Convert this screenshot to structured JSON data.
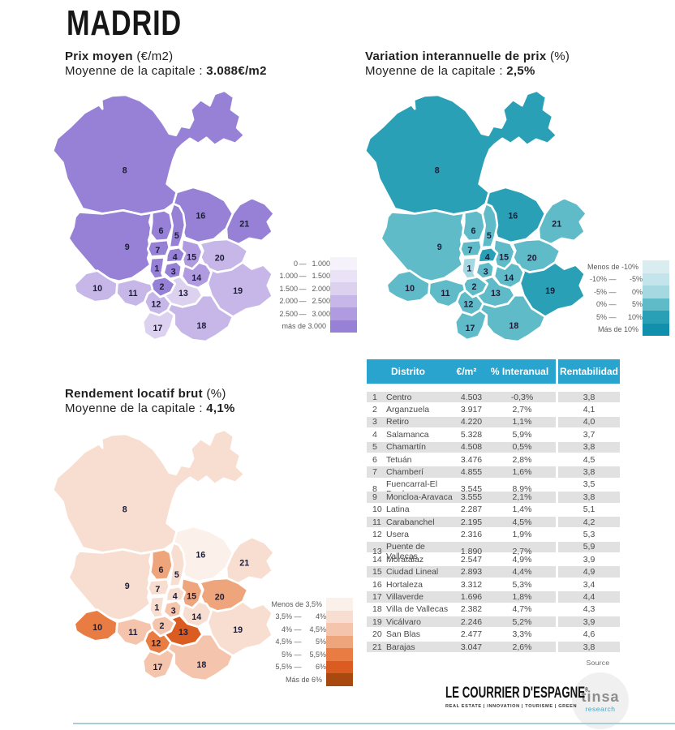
{
  "title": "MADRID",
  "maps": [
    {
      "id": "price",
      "title_bold": "Prix moyen",
      "title_rest": " (€/m2)",
      "subtitle": "Moyenne de la capitale : ",
      "subtitle_value": "3.088€/m2",
      "metric": "price_eur_m2",
      "thresholds": [
        1000,
        1500,
        2000,
        2500,
        3000
      ],
      "colors": [
        "#f5f2fb",
        "#eae3f7",
        "#dcd2f0",
        "#c7b7e8",
        "#b09ae0",
        "#9681d6"
      ],
      "legend_labels": [
        "0 — 1.000",
        "1.000 — 1.500",
        "1.500 — 2.000",
        "2.000 — 2.500",
        "2.500 — 3.000",
        "más de 3.000"
      ]
    },
    {
      "id": "variation",
      "title_bold": "Variation interannuelle de prix",
      "title_rest": " (%)",
      "subtitle": "Moyenne de la capitale : ",
      "subtitle_value": "2,5%",
      "metric": "yoy_pct",
      "thresholds": [
        -10,
        -5,
        0,
        5,
        10
      ],
      "colors": [
        "#d9edf1",
        "#c2e4ea",
        "#a5d8e0",
        "#5fbbc8",
        "#2aa0b6",
        "#1090ad"
      ],
      "legend_labels": [
        "Menos de -10%",
        "-10% — -5%",
        "-5% — 0%",
        "0% — 5%",
        "5% — 10%",
        "Más de 10%"
      ]
    },
    {
      "id": "yield",
      "title_bold": "Rendement locatif brut",
      "title_rest": " (%)",
      "subtitle": "Moyenne de la capitale : ",
      "subtitle_value": "4,1%",
      "metric": "yield_pct",
      "thresholds": [
        3.5,
        4,
        4.5,
        5,
        5.5,
        6
      ],
      "colors": [
        "#fcf0ea",
        "#f8ded0",
        "#f4c5ac",
        "#efa57c",
        "#e87c42",
        "#da5c20",
        "#a8490f"
      ],
      "legend_labels": [
        "Menos de 3,5%",
        "3,5% — 4%",
        "4% — 4,5%",
        "4,5% — 5%",
        "5% — 5,5%",
        "5,5% — 6%",
        "Más de 6%"
      ]
    }
  ],
  "table": {
    "headers": [
      "Distrito",
      "€/m²",
      "% Interanual",
      "Rentabilidad"
    ],
    "header_color": "#29a4ce",
    "stripe_color": "#e1e1e1"
  },
  "chart_data": {
    "type": "choropleth",
    "region": "Madrid districts",
    "metrics": [
      "price_eur_m2",
      "yoy_pct",
      "yield_pct"
    ],
    "districts": [
      {
        "id": 1,
        "name": "Centro",
        "price_eur_m2": 4503,
        "yoy_pct": -0.3,
        "yield_pct": 3.8
      },
      {
        "id": 2,
        "name": "Arganzuela",
        "price_eur_m2": 3917,
        "yoy_pct": 2.7,
        "yield_pct": 4.1
      },
      {
        "id": 3,
        "name": "Retiro",
        "price_eur_m2": 4220,
        "yoy_pct": 1.1,
        "yield_pct": 4.0
      },
      {
        "id": 4,
        "name": "Salamanca",
        "price_eur_m2": 5328,
        "yoy_pct": 5.9,
        "yield_pct": 3.7
      },
      {
        "id": 5,
        "name": "Chamartín",
        "price_eur_m2": 4508,
        "yoy_pct": 0.5,
        "yield_pct": 3.8
      },
      {
        "id": 6,
        "name": "Tetuán",
        "price_eur_m2": 3476,
        "yoy_pct": 2.8,
        "yield_pct": 4.5
      },
      {
        "id": 7,
        "name": "Chamberí",
        "price_eur_m2": 4855,
        "yoy_pct": 1.6,
        "yield_pct": 3.8
      },
      {
        "id": 8,
        "name": "Fuencarral-El Pardo",
        "price_eur_m2": 3545,
        "yoy_pct": 8.9,
        "yield_pct": 3.5
      },
      {
        "id": 9,
        "name": "Moncloa-Aravaca",
        "price_eur_m2": 3555,
        "yoy_pct": 2.1,
        "yield_pct": 3.8
      },
      {
        "id": 10,
        "name": "Latina",
        "price_eur_m2": 2287,
        "yoy_pct": 1.4,
        "yield_pct": 5.1
      },
      {
        "id": 11,
        "name": "Carabanchel",
        "price_eur_m2": 2195,
        "yoy_pct": 4.5,
        "yield_pct": 4.2
      },
      {
        "id": 12,
        "name": "Usera",
        "price_eur_m2": 2316,
        "yoy_pct": 1.9,
        "yield_pct": 5.3
      },
      {
        "id": 13,
        "name": "Puente de Vallecas",
        "price_eur_m2": 1890,
        "yoy_pct": 2.7,
        "yield_pct": 5.9
      },
      {
        "id": 14,
        "name": "Moratalaz",
        "price_eur_m2": 2547,
        "yoy_pct": 4.9,
        "yield_pct": 3.9
      },
      {
        "id": 15,
        "name": "Ciudad Lineal",
        "price_eur_m2": 2893,
        "yoy_pct": 4.4,
        "yield_pct": 4.9
      },
      {
        "id": 16,
        "name": "Hortaleza",
        "price_eur_m2": 3312,
        "yoy_pct": 5.3,
        "yield_pct": 3.4
      },
      {
        "id": 17,
        "name": "Villaverde",
        "price_eur_m2": 1696,
        "yoy_pct": 1.8,
        "yield_pct": 4.4
      },
      {
        "id": 18,
        "name": "Villa de Vallecas",
        "price_eur_m2": 2382,
        "yoy_pct": 4.7,
        "yield_pct": 4.3
      },
      {
        "id": 19,
        "name": "Vicálvaro",
        "price_eur_m2": 2246,
        "yoy_pct": 5.2,
        "yield_pct": 3.9
      },
      {
        "id": 20,
        "name": "San Blas",
        "price_eur_m2": 2477,
        "yoy_pct": 3.3,
        "yield_pct": 4.6
      },
      {
        "id": 21,
        "name": "Barajas",
        "price_eur_m2": 3047,
        "yoy_pct": 2.6,
        "yield_pct": 3.8
      }
    ]
  },
  "footer": {
    "source_label": "Source",
    "courrier_title": "LE COURRIER D'ESPAGNE",
    "courrier_mark": "®",
    "courrier_tagline": "REAL ESTATE | INNOVATION | TOURISME | GREEN",
    "tinsa_name": "tinsa",
    "tinsa_sub": "research"
  }
}
